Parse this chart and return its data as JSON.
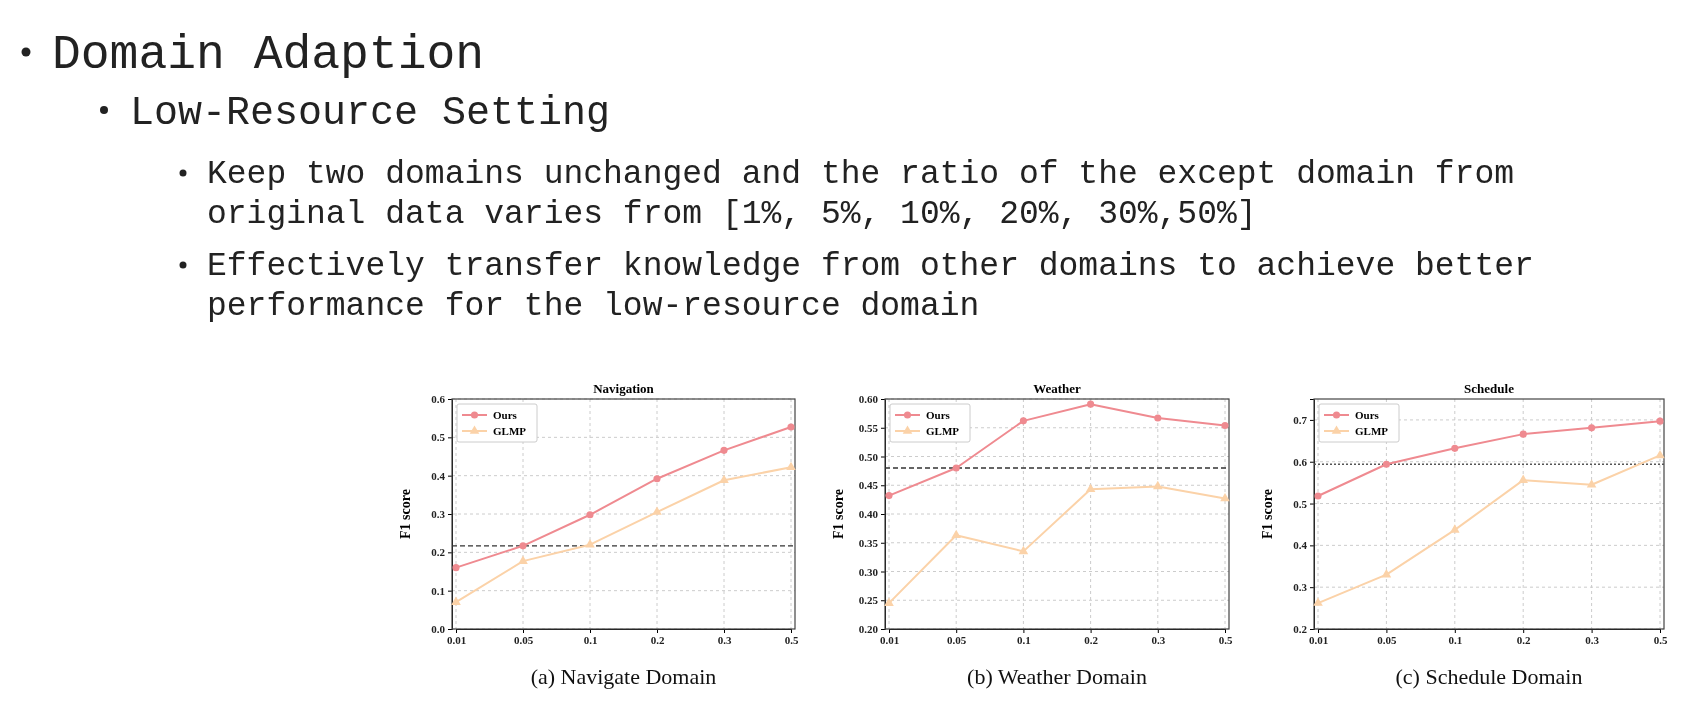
{
  "chart_data": [
    {
      "type": "other",
      "title": "Domain Adaption",
      "subtitle": "Low-Resource Setting",
      "annotations": [
        "Keep two domains unchanged and the ratio of the except domain from original data varies from [1%, 5%, 10%, 20%, 30%,50%]",
        "Effectively transfer knowledge from other domains to achieve better performance for the low-resource domain"
      ]
    },
    {
      "type": "line",
      "title": "Navigation",
      "ylabel": "F1 score",
      "annotations": [
        "(a) Navigate Domain"
      ],
      "categories": [
        "0.01",
        "0.05",
        "0.1",
        "0.2",
        "0.3",
        "0.5"
      ],
      "series": [
        {
          "name": "Ours",
          "color": "#ef8a90",
          "marker": "circle",
          "values": [
            0.16,
            0.217,
            0.298,
            0.392,
            0.466,
            0.527
          ]
        },
        {
          "name": "GLMP",
          "color": "#fbd2a8",
          "marker": "triangle",
          "values": [
            0.07,
            0.177,
            0.22,
            0.305,
            0.388,
            0.422
          ]
        }
      ],
      "ylim": [
        0,
        0.6
      ],
      "yticks": [
        {
          "value": 0,
          "label": "0.0"
        },
        0.1,
        0.2,
        0.3,
        0.4,
        0.5,
        0.6
      ],
      "grid": true,
      "legend": "top left",
      "ref_lines": [
        {
          "axis": "y",
          "value": 0.217,
          "color": "#333333",
          "line_style": "dashed"
        }
      ]
    },
    {
      "type": "line",
      "title": "Weather",
      "ylabel": "F1 score",
      "annotations": [
        "(b) Weather Domain"
      ],
      "categories": [
        "0.01",
        "0.05",
        "0.1",
        "0.2",
        "0.3",
        "0.5"
      ],
      "series": [
        {
          "name": "Ours",
          "color": "#ef8a90",
          "marker": "circle",
          "values": [
            0.432,
            0.48,
            0.562,
            0.591,
            0.567,
            0.554
          ]
        },
        {
          "name": "GLMP",
          "color": "#fbd2a8",
          "marker": "triangle",
          "values": [
            0.245,
            0.363,
            0.335,
            0.443,
            0.448,
            0.427
          ]
        }
      ],
      "ylim": [
        0.2,
        0.6
      ],
      "yticks": [
        {
          "value": 0.2,
          "label": "0.20"
        },
        {
          "value": 0.25,
          "label": "0.25"
        },
        {
          "value": 0.3,
          "label": "0.30"
        },
        {
          "value": 0.35,
          "label": "0.35"
        },
        {
          "value": 0.4,
          "label": "0.40"
        },
        {
          "value": 0.45,
          "label": "0.45"
        },
        {
          "value": 0.5,
          "label": "0.50"
        },
        {
          "value": 0.55,
          "label": "0.55"
        },
        {
          "value": 0.6,
          "label": "0.60"
        }
      ],
      "grid": true,
      "legend": "top left",
      "ref_lines": [
        {
          "axis": "y",
          "value": 0.48,
          "color": "#333333",
          "line_style": "dashed"
        }
      ]
    },
    {
      "type": "line",
      "title": "Schedule",
      "ylabel": "F1 score",
      "annotations": [
        "(c) Schedule Domain"
      ],
      "categories": [
        "0.01",
        "0.05",
        "0.1",
        "0.2",
        "0.3",
        "0.5"
      ],
      "series": [
        {
          "name": "Ours",
          "color": "#ef8a90",
          "marker": "circle",
          "values": [
            0.518,
            0.594,
            0.632,
            0.666,
            0.681,
            0.697
          ]
        },
        {
          "name": "GLMP",
          "color": "#fbd2a8",
          "marker": "triangle",
          "values": [
            0.262,
            0.33,
            0.437,
            0.556,
            0.545,
            0.615
          ]
        }
      ],
      "ylim": [
        0.2,
        0.75
      ],
      "yticks": [
        0.2,
        0.3,
        0.4,
        0.5,
        0.6,
        0.7
      ],
      "grid": true,
      "legend": "top left",
      "ref_lines": [
        {
          "axis": "y",
          "value": 0.594,
          "color": "#555555",
          "line_style": "dotted"
        }
      ]
    }
  ]
}
